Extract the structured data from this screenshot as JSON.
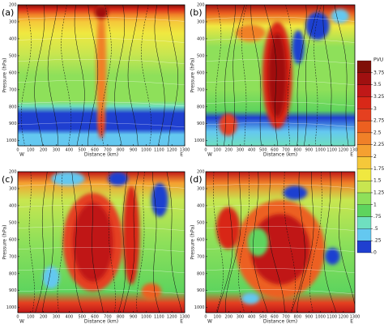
{
  "panels": [
    {
      "label": "(a)"
    },
    {
      "label": "(b)"
    },
    {
      "label": "(c)"
    },
    {
      "label": "(d)"
    }
  ],
  "axes": {
    "y_label": "Pressure (hPa)",
    "x_label": "Distance (km)",
    "x_left": "W",
    "x_right": "E",
    "xlim": [
      0,
      1300
    ],
    "xticks": [
      0,
      100,
      200,
      300,
      400,
      500,
      600,
      700,
      800,
      900,
      1000,
      1100,
      1200,
      1300
    ],
    "ylim": [
      200,
      1030
    ],
    "yticks": [
      200,
      300,
      400,
      500,
      600,
      700,
      800,
      900,
      1000
    ]
  },
  "colorbar": {
    "title": "PVU",
    "clim": [
      0,
      4
    ],
    "ticks": [
      0,
      {
        "value": 0.25,
        "label": ".25"
      },
      {
        "value": 0.5,
        "label": ".5"
      },
      {
        "value": 0.75,
        "label": ".75"
      },
      1,
      1.25,
      1.5,
      1.75,
      2,
      2.25,
      2.5,
      2.75,
      3,
      3.25,
      3.5,
      3.75
    ],
    "colors": [
      "#1f3fd0",
      "#64c8f0",
      "#6fe0c0",
      "#5ed45e",
      "#8ee05a",
      "#c8e650",
      "#f0e840",
      "#f5c83a",
      "#f5a030",
      "#f08028",
      "#ec6020",
      "#e54020",
      "#d82818",
      "#c01818",
      "#a01010",
      "#801008"
    ]
  }
}
